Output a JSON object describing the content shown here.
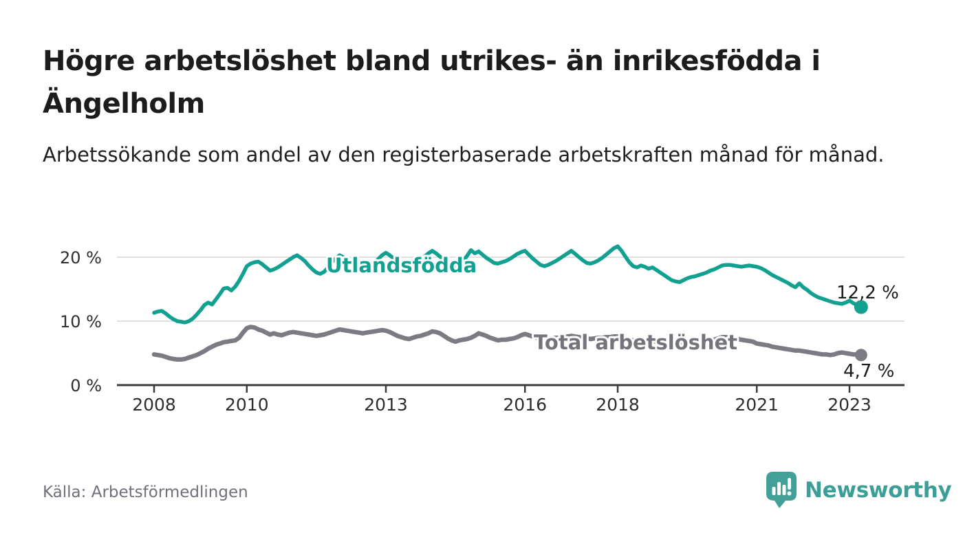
{
  "page": {
    "title": "Högre arbetslöshet bland utrikes- än inrikesfödda i Ängelholm",
    "subtitle": "Arbetssökande som andel av den registerbaserade arbetskraften månad för månad.",
    "source": "Källa: Arbetsförmedlingen",
    "brand": "Newsworthy"
  },
  "chart_data": {
    "type": "line",
    "title": "Högre arbetslöshet bland utrikes- än inrikesfödda i Ängelholm",
    "subtitle": "Arbetssökande som andel av den registerbaserade arbetskraften månad för månad.",
    "source": "Källa: Arbetsförmedlingen",
    "x_unit": "month",
    "x_range": [
      "2008-01",
      "2023-04"
    ],
    "x_ticks": [
      2008,
      2010,
      2013,
      2016,
      2018,
      2021,
      2023
    ],
    "y_ticks": [
      20,
      10,
      0
    ],
    "y_tick_labels": [
      "20 %",
      "10 %",
      "0 %"
    ],
    "ylim": [
      0,
      23
    ],
    "grid": "horizontal",
    "legend_position": "inline-labels",
    "colors": {
      "utlandsfodda": "#12a091",
      "total": "#7b7b83",
      "axis": "#3a3a3a",
      "grid": "#e0e0e0",
      "brand": "#3b9e97"
    },
    "series": [
      {
        "name": "Utlandsfödda",
        "color": "#12a091",
        "end_label": "12,2 %",
        "last_value": 12.2,
        "values": [
          11.3,
          11.5,
          11.6,
          11.2,
          10.7,
          10.3,
          10.0,
          9.9,
          9.8,
          10.0,
          10.4,
          11.0,
          11.7,
          12.5,
          12.9,
          12.6,
          13.4,
          14.2,
          15.1,
          15.2,
          14.8,
          15.4,
          16.3,
          17.4,
          18.6,
          19.0,
          19.2,
          19.3,
          18.9,
          18.4,
          17.9,
          18.1,
          18.4,
          18.8,
          19.2,
          19.6,
          20.0,
          20.3,
          19.9,
          19.4,
          18.7,
          18.1,
          17.6,
          17.4,
          17.7,
          18.4,
          19.2,
          19.8,
          20.3,
          20.0,
          19.6,
          19.2,
          18.8,
          18.3,
          17.8,
          17.7,
          18.3,
          18.9,
          19.7,
          20.3,
          20.7,
          20.3,
          19.8,
          19.4,
          19.0,
          18.8,
          18.7,
          18.9,
          19.2,
          19.6,
          20.1,
          20.6,
          21.0,
          20.6,
          20.1,
          19.6,
          19.2,
          18.9,
          18.8,
          19.0,
          19.4,
          20.2,
          21.1,
          20.6,
          20.9,
          20.4,
          19.9,
          19.5,
          19.1,
          19.0,
          19.2,
          19.4,
          19.7,
          20.1,
          20.5,
          20.8,
          21.0,
          20.4,
          19.8,
          19.3,
          18.8,
          18.6,
          18.8,
          19.1,
          19.4,
          19.8,
          20.2,
          20.6,
          21.0,
          20.5,
          20.0,
          19.5,
          19.1,
          19.0,
          19.2,
          19.5,
          19.9,
          20.4,
          20.9,
          21.4,
          21.7,
          21.0,
          20.1,
          19.2,
          18.6,
          18.4,
          18.7,
          18.5,
          18.2,
          18.4,
          18.0,
          17.6,
          17.2,
          16.8,
          16.4,
          16.2,
          16.1,
          16.4,
          16.7,
          16.9,
          17.0,
          17.2,
          17.4,
          17.6,
          17.9,
          18.1,
          18.4,
          18.7,
          18.8,
          18.8,
          18.7,
          18.6,
          18.5,
          18.6,
          18.7,
          18.6,
          18.5,
          18.3,
          18.0,
          17.6,
          17.2,
          16.9,
          16.6,
          16.3,
          16.0,
          15.6,
          15.3,
          15.9,
          15.3,
          14.9,
          14.4,
          14.0,
          13.7,
          13.5,
          13.3,
          13.1,
          12.9,
          12.8,
          12.7,
          12.9,
          13.2,
          12.8,
          12.5,
          12.2
        ]
      },
      {
        "name": "Total arbetslöshet",
        "color": "#7b7b83",
        "end_label": "4,7 %",
        "last_value": 4.7,
        "values": [
          4.8,
          4.7,
          4.6,
          4.4,
          4.2,
          4.1,
          4.0,
          4.0,
          4.1,
          4.3,
          4.5,
          4.7,
          5.0,
          5.3,
          5.7,
          6.0,
          6.3,
          6.5,
          6.7,
          6.8,
          6.9,
          7.0,
          7.4,
          8.2,
          8.9,
          9.1,
          9.0,
          8.7,
          8.5,
          8.2,
          7.9,
          8.1,
          7.9,
          7.8,
          8.0,
          8.2,
          8.3,
          8.2,
          8.1,
          8.0,
          7.9,
          7.8,
          7.7,
          7.8,
          7.9,
          8.1,
          8.3,
          8.5,
          8.7,
          8.6,
          8.5,
          8.4,
          8.3,
          8.2,
          8.1,
          8.2,
          8.3,
          8.4,
          8.5,
          8.6,
          8.5,
          8.3,
          8.0,
          7.7,
          7.5,
          7.3,
          7.2,
          7.4,
          7.6,
          7.7,
          7.9,
          8.1,
          8.4,
          8.3,
          8.1,
          7.7,
          7.3,
          7.0,
          6.8,
          7.0,
          7.1,
          7.2,
          7.4,
          7.7,
          8.1,
          7.9,
          7.7,
          7.4,
          7.2,
          7.0,
          7.1,
          7.1,
          7.2,
          7.3,
          7.5,
          7.8,
          8.0,
          7.8,
          7.6,
          7.4,
          7.3,
          7.2,
          7.3,
          7.3,
          7.4,
          7.4,
          7.5,
          7.6,
          7.7,
          7.6,
          7.5,
          7.4,
          7.3,
          7.2,
          7.3,
          7.4,
          7.4,
          7.5,
          7.5,
          7.6,
          7.6,
          7.4,
          7.2,
          7.1,
          7.0,
          6.9,
          7.0,
          7.0,
          6.9,
          6.9,
          6.8,
          6.9,
          7.0,
          6.9,
          6.8,
          6.7,
          6.7,
          6.8,
          6.9,
          6.9,
          6.8,
          6.8,
          6.9,
          7.0,
          7.1,
          7.1,
          7.3,
          7.5,
          7.5,
          7.4,
          7.3,
          7.2,
          7.1,
          7.0,
          6.9,
          6.8,
          6.5,
          6.4,
          6.3,
          6.2,
          6.0,
          5.9,
          5.8,
          5.7,
          5.6,
          5.5,
          5.4,
          5.4,
          5.3,
          5.2,
          5.1,
          5.0,
          4.9,
          4.8,
          4.8,
          4.7,
          4.8,
          5.0,
          5.1,
          5.0,
          4.9,
          4.8,
          4.8,
          4.7
        ]
      }
    ]
  }
}
